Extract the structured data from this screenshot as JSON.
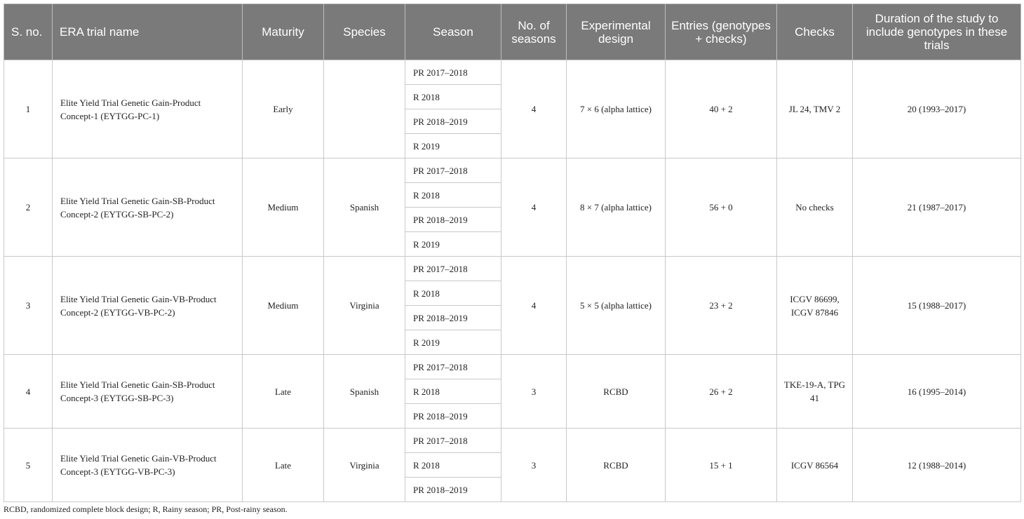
{
  "headers": {
    "sno": "S. no.",
    "trial_name": "ERA trial name",
    "maturity": "Maturity",
    "species": "Species",
    "season": "Season",
    "num_seasons": "No. of seasons",
    "design": "Experimental design",
    "entries": "Entries (genotypes + checks)",
    "checks": "Checks",
    "duration": "Duration of the study to include genotypes in these trials"
  },
  "rows": [
    {
      "sno": "1",
      "trial_name": "Elite Yield Trial Genetic Gain-Product Concept-1 (EYTGG-PC-1)",
      "maturity": "Early",
      "species": "",
      "seasons": [
        "PR 2017–2018",
        "R 2018",
        "PR 2018–2019",
        "R 2019"
      ],
      "num_seasons": "4",
      "design": "7 × 6 (alpha lattice)",
      "entries": "40 + 2",
      "checks": "JL 24, TMV 2",
      "duration": "20 (1993–2017)"
    },
    {
      "sno": "2",
      "trial_name": "Elite Yield Trial Genetic Gain-SB-Product Concept-2 (EYTGG-SB-PC-2)",
      "maturity": "Medium",
      "species": "Spanish",
      "seasons": [
        "PR 2017–2018",
        "R 2018",
        "PR 2018–2019",
        "R 2019"
      ],
      "num_seasons": "4",
      "design": "8 × 7 (alpha lattice)",
      "entries": "56 + 0",
      "checks": "No checks",
      "duration": "21 (1987–2017)"
    },
    {
      "sno": "3",
      "trial_name": "Elite Yield Trial Genetic Gain-VB-Product Concept-2 (EYTGG-VB-PC-2)",
      "maturity": "Medium",
      "species": "Virginia",
      "seasons": [
        "PR 2017–2018",
        "R 2018",
        "PR 2018–2019",
        "R 2019"
      ],
      "num_seasons": "4",
      "design": "5 × 5 (alpha lattice)",
      "entries": "23 + 2",
      "checks": "ICGV 86699, ICGV 87846",
      "duration": "15 (1988–2017)"
    },
    {
      "sno": "4",
      "trial_name": "Elite Yield Trial Genetic Gain-SB-Product Concept-3 (EYTGG-SB-PC-3)",
      "maturity": "Late",
      "species": "Spanish",
      "seasons": [
        "PR 2017–2018",
        "R 2018",
        "PR 2018–2019"
      ],
      "num_seasons": "3",
      "design": "RCBD",
      "entries": "26 + 2",
      "checks": "TKE-19-A, TPG 41",
      "duration": "16 (1995–2014)"
    },
    {
      "sno": "5",
      "trial_name": "Elite Yield Trial Genetic Gain-VB-Product Concept-3 (EYTGG-VB-PC-3)",
      "maturity": "Late",
      "species": "Virginia",
      "seasons": [
        "PR 2017–2018",
        "R 2018",
        "PR 2018–2019"
      ],
      "num_seasons": "3",
      "design": "RCBD",
      "entries": "15 + 1",
      "checks": "ICGV 86564",
      "duration": "12 (1988–2014)"
    }
  ],
  "footnote": "RCBD, randomized complete block design; R, Rainy season; PR, Post-rainy season."
}
